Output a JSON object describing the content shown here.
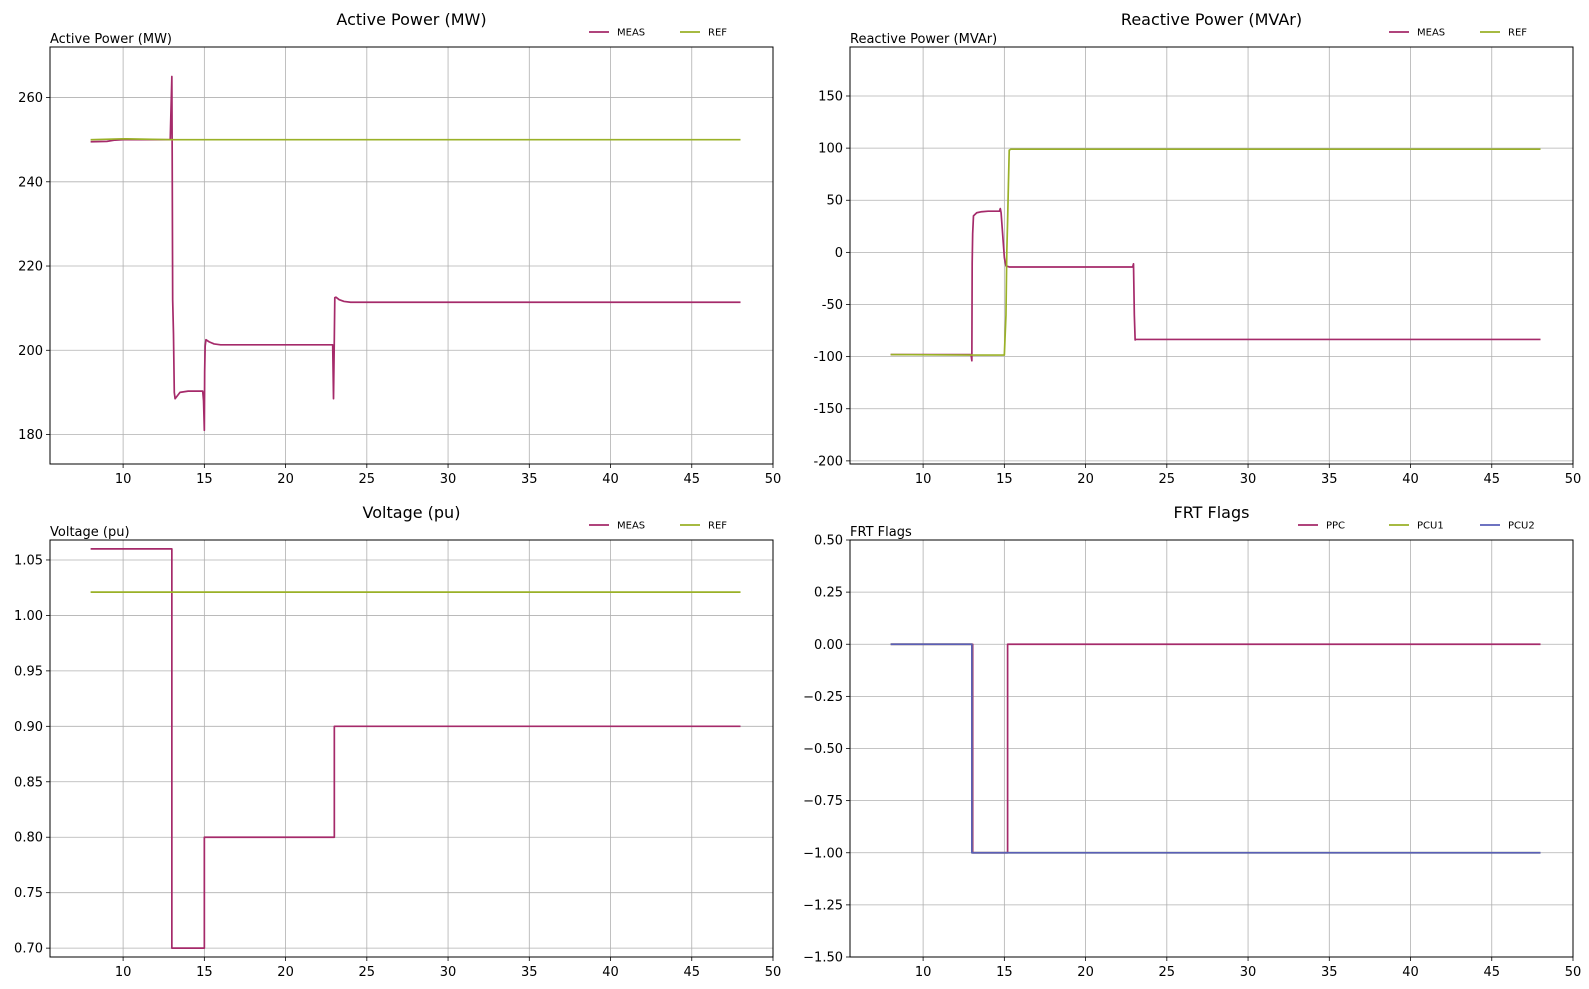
{
  "chart_data": [
    {
      "type": "line",
      "title": "Active Power (MW)",
      "ylabel": "Active Power (MW)",
      "xlabel": "",
      "xlim": [
        5.5,
        50
      ],
      "ylim": [
        173,
        272
      ],
      "xticks": [
        10,
        15,
        20,
        25,
        30,
        35,
        40,
        45,
        50
      ],
      "yticks": [
        180,
        200,
        220,
        240,
        260
      ],
      "grid": true,
      "legend": "top-right",
      "series": [
        {
          "name": "MEAS",
          "color": "#a52a6a",
          "x": [
            8.0,
            9.0,
            9.5,
            10.0,
            12.9,
            13.0,
            13.02,
            13.05,
            13.1,
            13.15,
            13.2,
            13.3,
            13.5,
            14.0,
            14.9,
            14.95,
            15.0,
            15.02,
            15.05,
            15.1,
            15.3,
            15.6,
            16.0,
            22.9,
            22.95,
            23.0,
            23.03,
            23.1,
            23.3,
            23.6,
            24.0,
            48.0
          ],
          "y": [
            249.5,
            249.6,
            249.9,
            250.0,
            250.0,
            265,
            247,
            212,
            204,
            190,
            188.5,
            189,
            190,
            190.3,
            190.3,
            188,
            181,
            195,
            201,
            202.5,
            202,
            201.5,
            201.3,
            201.3,
            188.5,
            203,
            212.5,
            212.6,
            212,
            211.6,
            211.4,
            211.4
          ]
        },
        {
          "name": "REF",
          "color": "#9ab127",
          "x": [
            8.0,
            10.0,
            13.0,
            48.0
          ],
          "y": [
            250.0,
            250.2,
            250.0,
            250.0
          ]
        }
      ]
    },
    {
      "type": "line",
      "title": "Reactive Power (MVAr)",
      "ylabel": "Reactive Power (MVAr)",
      "xlabel": "",
      "xlim": [
        5.5,
        50
      ],
      "ylim": [
        -203,
        197
      ],
      "xticks": [
        10,
        15,
        20,
        25,
        30,
        35,
        40,
        45,
        50
      ],
      "yticks": [
        -200,
        -150,
        -100,
        -50,
        0,
        50,
        100,
        150
      ],
      "grid": true,
      "legend": "top-right",
      "series": [
        {
          "name": "MEAS",
          "color": "#a52a6a",
          "x": [
            8.0,
            12.95,
            13.0,
            13.02,
            13.05,
            13.1,
            13.3,
            13.6,
            14.0,
            14.7,
            14.75,
            14.8,
            15.0,
            15.1,
            15.3,
            22.9,
            22.95,
            23.0,
            23.05,
            23.1,
            48.0
          ],
          "y": [
            -98,
            -98,
            -104,
            -10,
            18,
            35,
            38,
            39,
            39.5,
            39.5,
            42,
            38,
            -5,
            -13,
            -14,
            -14,
            -11,
            -60,
            -84,
            -83.5,
            -83.5
          ]
        },
        {
          "name": "REF",
          "color": "#9ab127",
          "x": [
            8.0,
            13.0,
            15.0,
            15.1,
            15.15,
            15.2,
            15.25,
            15.3,
            15.4,
            48.0
          ],
          "y": [
            -98,
            -98.5,
            -98.5,
            -60,
            0,
            30,
            65,
            98,
            99,
            99
          ]
        }
      ]
    },
    {
      "type": "line",
      "title": "Voltage (pu)",
      "ylabel": "Voltage (pu)",
      "xlabel": "",
      "xlim": [
        5.5,
        50
      ],
      "ylim": [
        0.692,
        1.068
      ],
      "xticks": [
        10,
        15,
        20,
        25,
        30,
        35,
        40,
        45,
        50
      ],
      "yticks": [
        0.7,
        0.75,
        0.8,
        0.85,
        0.9,
        0.95,
        1.0,
        1.05
      ],
      "ytick_labels": [
        "0.70",
        "0.75",
        "0.80",
        "0.85",
        "0.90",
        "0.95",
        "1.00",
        "1.05"
      ],
      "grid": true,
      "legend": "top-right",
      "series": [
        {
          "name": "MEAS",
          "color": "#a52a6a",
          "x": [
            8.0,
            13.0,
            13.0,
            15.0,
            15.0,
            23.0,
            23.0,
            48.0
          ],
          "y": [
            1.06,
            1.06,
            0.7,
            0.7,
            0.8,
            0.8,
            0.9,
            0.9
          ]
        },
        {
          "name": "REF",
          "color": "#9ab127",
          "x": [
            8.0,
            48.0
          ],
          "y": [
            1.021,
            1.021
          ]
        }
      ]
    },
    {
      "type": "line",
      "title": "FRT Flags",
      "ylabel": "FRT Flags",
      "xlabel": "",
      "xlim": [
        5.5,
        50
      ],
      "ylim": [
        -1.5,
        0.5
      ],
      "xticks": [
        10,
        15,
        20,
        25,
        30,
        35,
        40,
        45,
        50
      ],
      "yticks": [
        -1.5,
        -1.25,
        -1.0,
        -0.75,
        -0.5,
        -0.25,
        0.0,
        0.25,
        0.5
      ],
      "ytick_labels": [
        "−1.50",
        "−1.25",
        "−1.00",
        "−0.75",
        "−0.50",
        "−0.25",
        "0.00",
        "0.25",
        "0.50"
      ],
      "grid": true,
      "legend": "top-right",
      "series": [
        {
          "name": "PPC",
          "color": "#a52a6a",
          "x": [
            8.0,
            13.05,
            13.05,
            15.2,
            15.2,
            48.0
          ],
          "y": [
            0,
            0,
            -1,
            -1,
            0,
            0
          ]
        },
        {
          "name": "PCU1",
          "color": "#9ab127",
          "x": [
            8.0,
            13.0,
            13.0,
            48.0
          ],
          "y": [
            0,
            0,
            -1,
            -1
          ]
        },
        {
          "name": "PCU2",
          "color": "#5a5fb8",
          "x": [
            8.0,
            13.0,
            13.0,
            48.0
          ],
          "y": [
            0,
            0,
            -1,
            -1
          ]
        }
      ]
    }
  ]
}
